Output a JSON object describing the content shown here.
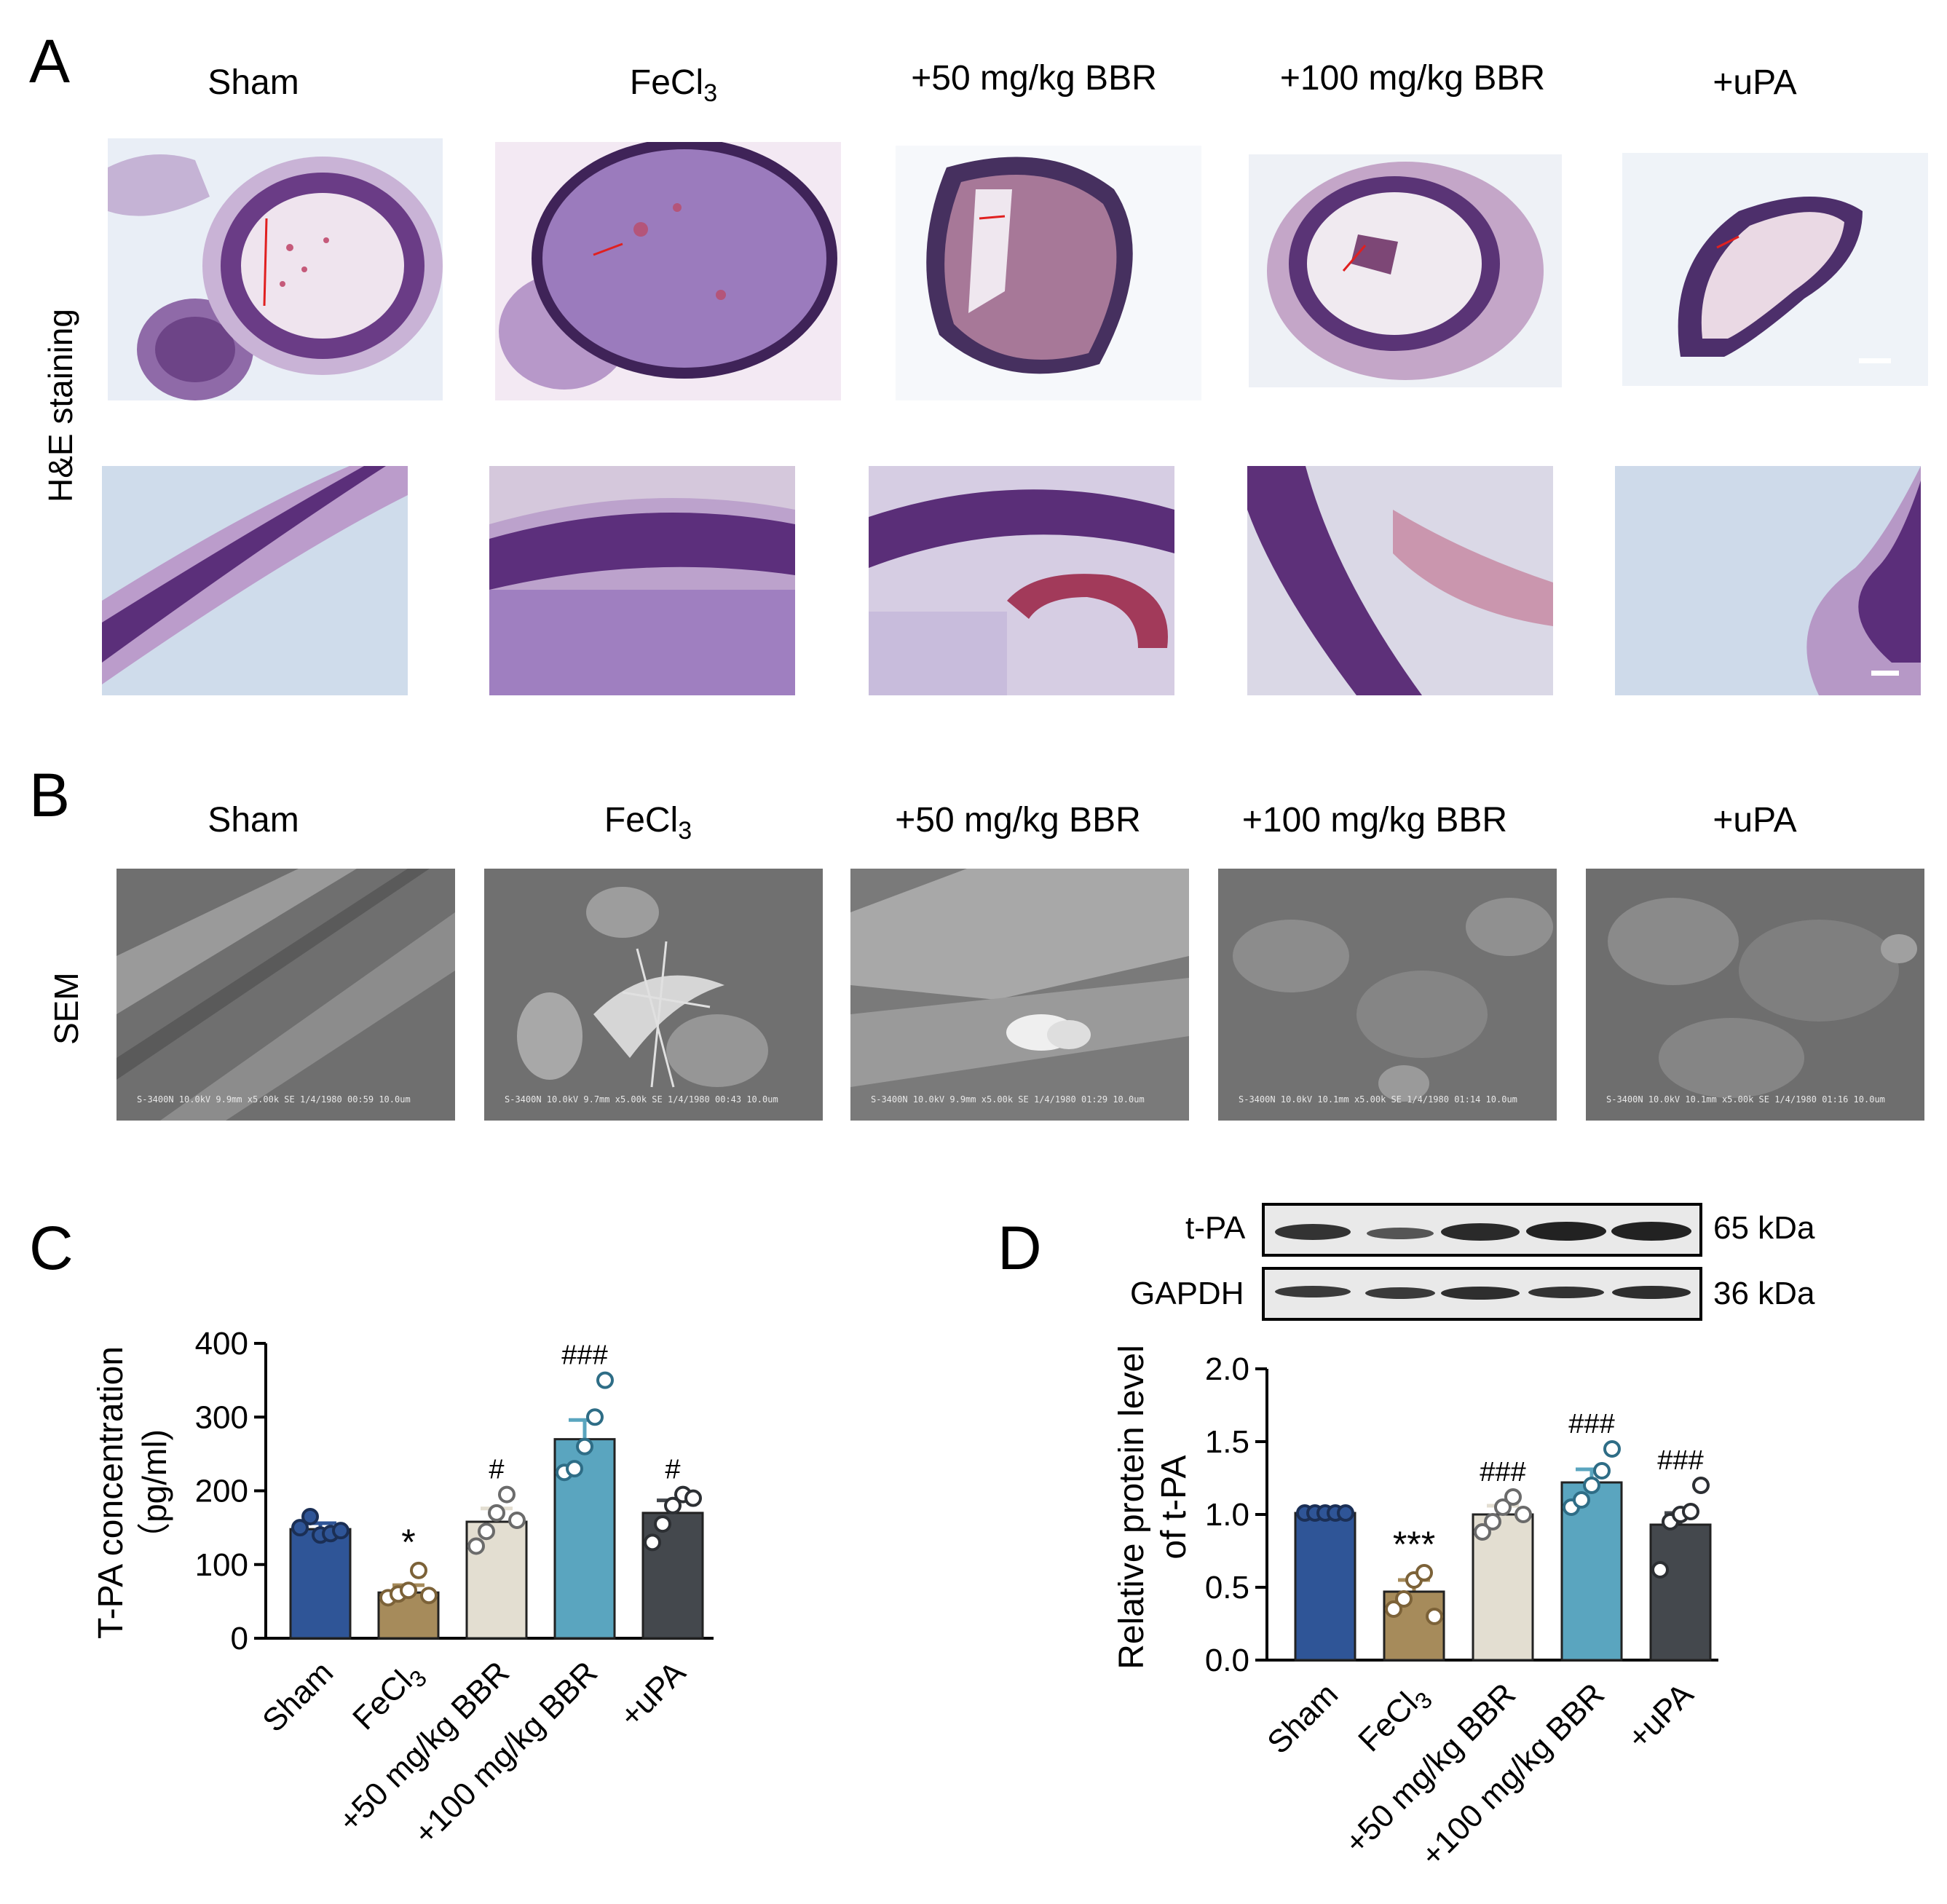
{
  "panels": {
    "a": {
      "letter": "A",
      "row_label": "H&E staining",
      "columns": [
        {
          "label": "Sham"
        },
        {
          "label": "FeCl",
          "sub": "3"
        },
        {
          "label": "+50 mg/kg BBR"
        },
        {
          "label": "+100 mg/kg BBR"
        },
        {
          "label": "+uPA"
        }
      ]
    },
    "b": {
      "letter": "B",
      "row_label": "SEM",
      "columns": [
        {
          "label": "Sham",
          "caption": "S-3400N 10.0kV 9.9mm x5.00k SE  1/4/1980 00:59      10.0um"
        },
        {
          "label": "FeCl",
          "sub": "3",
          "caption": "S-3400N 10.0kV 9.7mm x5.00k SE  1/4/1980 00:43      10.0um"
        },
        {
          "label": "+50 mg/kg BBR",
          "caption": "S-3400N 10.0kV 9.9mm x5.00k SE  1/4/1980 01:29      10.0um"
        },
        {
          "label": "+100 mg/kg BBR",
          "caption": "S-3400N 10.0kV 10.1mm x5.00k SE  1/4/1980 01:14      10.0um"
        },
        {
          "label": "+uPA",
          "caption": "S-3400N 10.0kV 10.1mm x5.00k SE  1/4/1980 01:16      10.0um"
        }
      ]
    },
    "c": {
      "letter": "C"
    },
    "d": {
      "letter": "D",
      "blot": [
        {
          "label": "t-PA",
          "size": "65 kDa"
        },
        {
          "label": "GAPDH",
          "size": "36 kDa"
        }
      ]
    }
  },
  "colors": {
    "sham": "#2f5597",
    "fecl3": "#a68b5b",
    "bbr50": "#e3ded1",
    "bbr100": "#5aa5bf",
    "upa": "#44484d"
  },
  "chart_data": [
    {
      "type": "bar",
      "panel": "C",
      "ylabel": "T-PA concentration",
      "ylabel_unit": "（pg/ml)",
      "ylim": [
        0,
        400
      ],
      "yticks": [
        0,
        100,
        200,
        300,
        400
      ],
      "categories": [
        "Sham",
        "FeCl3",
        "+50 mg/kg BBR",
        "+100 mg/kg BBR",
        "+uPA"
      ],
      "values": [
        148,
        62,
        158,
        270,
        170
      ],
      "sem": [
        8,
        10,
        18,
        26,
        17
      ],
      "points": [
        [
          150,
          165,
          140,
          142,
          146
        ],
        [
          55,
          60,
          65,
          92,
          58
        ],
        [
          125,
          145,
          170,
          195,
          160
        ],
        [
          225,
          230,
          260,
          300,
          350
        ],
        [
          130,
          155,
          180,
          195,
          190
        ]
      ],
      "annotations": [
        "",
        "*",
        "#",
        "###",
        "#"
      ]
    },
    {
      "type": "bar",
      "panel": "D",
      "ylabel": "Relative protein level",
      "ylabel_line2": "of t-PA",
      "ylim": [
        0,
        2.0
      ],
      "yticks": [
        0.0,
        0.5,
        1.0,
        1.5,
        2.0
      ],
      "categories": [
        "Sham",
        "FeCl3",
        "+50 mg/kg BBR",
        "+100 mg/kg BBR",
        "+uPA"
      ],
      "values": [
        1.01,
        0.47,
        1.0,
        1.22,
        0.93
      ],
      "sem": [
        0.01,
        0.08,
        0.06,
        0.09,
        0.08
      ],
      "points": [
        [
          1.01,
          1.01,
          1.01,
          1.01,
          1.01
        ],
        [
          0.35,
          0.42,
          0.55,
          0.6,
          0.3
        ],
        [
          0.88,
          0.95,
          1.05,
          1.12,
          1.0
        ],
        [
          1.05,
          1.1,
          1.2,
          1.3,
          1.45
        ],
        [
          0.62,
          0.95,
          1.0,
          1.02,
          1.2
        ]
      ],
      "annotations": [
        "",
        "***",
        "###",
        "###",
        "###"
      ]
    }
  ]
}
